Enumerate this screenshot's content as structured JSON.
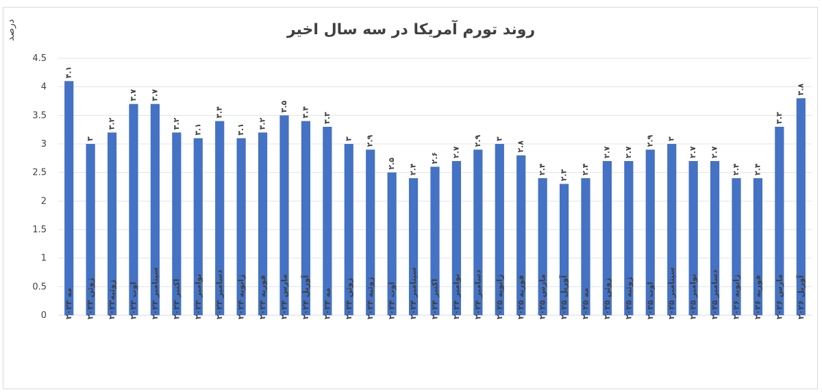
{
  "chart_data": {
    "type": "bar",
    "title": "روند تورم آمریکا در سه سال اخیر",
    "ylabel": "درصد",
    "xlabel": "",
    "ylim": [
      0,
      4.5
    ],
    "yticks": [
      0,
      0.5,
      1,
      1.5,
      2,
      2.5,
      3,
      3.5,
      4,
      4.5
    ],
    "ytick_labels": [
      "0",
      "0.5",
      "1",
      "1.5",
      "2",
      "2.5",
      "3",
      "3.5",
      "4",
      "4.5"
    ],
    "grid": true,
    "legend": "none",
    "bar_color": "#4472C4",
    "categories": [
      "مه ۲۰۲۳",
      "ژوئن ۲۰۲۳",
      "ژوئیه۲۰۲۳",
      "اوت ۲۰۲۳",
      "سپتامبر ۲۰۲۳",
      "اکتبر ۲۰۲۳",
      "نوامبر ۲۰۲۳",
      "دسامبر ۲۰۲۳",
      "ژانویه ۲۰۲۴",
      "فوریه ۲۰۲۴",
      "مارس ۲۰۲۴",
      "آوریل ۲۰۲۴",
      "مه ۲۰۲۴",
      "ژوئن ۲۰۲۴",
      "ژوئیه ۲۰۲۴",
      "اوت ۲۰۲۴",
      "سپتامبر ۲۰۲۴",
      "اکتبر ۲۰۲۴",
      "نوامبر ۲۰۲۴",
      "دسامبر ۲۰۲۴",
      "ژانویه ۲۰۲۵",
      "فوریه ۲۰۲۵",
      "مارس ۲۰۲۵",
      "آوریل ۲۰۲۵",
      "مه ۲۰۲۵",
      "ژوئن ۲۰۲۵",
      "ژوئیه ۲۰۲۵",
      "اوت ۲۰۲۵",
      "سپتامبر ۲۰۲۵",
      "نوامبر ۲۰۲۵",
      "دسامبر ۲۰۲۵",
      "ژانویه ۲۰۲۶",
      "فوریه ۲۰۲۶",
      "مارس ۲۰۲۶",
      "آوریل ۲۰۲۶"
    ],
    "values": [
      4.1,
      3,
      3.2,
      3.7,
      3.7,
      3.2,
      3.1,
      3.4,
      3.1,
      3.2,
      3.5,
      3.4,
      3.3,
      3,
      2.9,
      2.5,
      2.4,
      2.6,
      2.7,
      2.9,
      3,
      2.8,
      2.4,
      2.3,
      2.4,
      2.7,
      2.7,
      2.9,
      3,
      2.7,
      2.7,
      2.4,
      2.4,
      3.3,
      3.8
    ],
    "value_labels": [
      "۴.۱",
      "۳",
      "۳.۲",
      "۳.۷",
      "۳.۷",
      "۳.۲",
      "۳.۱",
      "۳.۴",
      "۳.۱",
      "۳.۲",
      "۳.۵",
      "۳.۴",
      "۳.۳",
      "۳",
      "۲.۹",
      "۲.۵",
      "۲.۴",
      "۲.۶",
      "۲.۷",
      "۲.۹",
      "۳",
      "۲.۸",
      "۲.۴",
      "۲.۳",
      "۲.۴",
      "۲.۷",
      "۲.۷",
      "۲.۹",
      "۳",
      "۲.۷",
      "۲.۷",
      "۲.۴",
      "۲.۴",
      "۳.۳",
      "۳.۸"
    ]
  }
}
